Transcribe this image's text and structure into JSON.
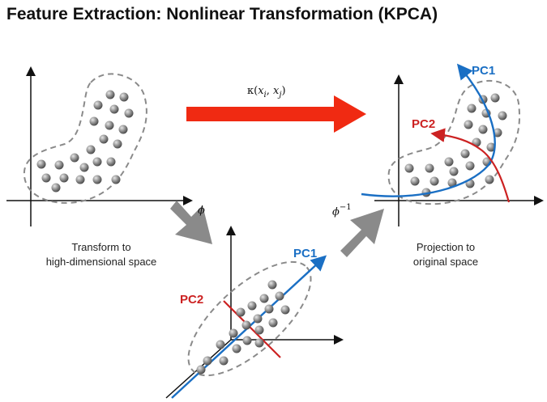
{
  "title": "Feature Extraction: Nonlinear Transformation (KPCA)",
  "kernel_label": "κ(xi, xj)",
  "kernel_parts": {
    "kappa": "κ(",
    "x": "x",
    "i": "i",
    "comma": ", ",
    "j": "j",
    "close": ")"
  },
  "phi_label": "ϕ",
  "phi_inv": {
    "phi": "ϕ",
    "exp": "−1"
  },
  "captions": {
    "transform_line1": "Transform to",
    "transform_line2": "high-dimensional space",
    "projection_line1": "Projection to",
    "projection_line2": "original space"
  },
  "pc_labels": {
    "mid_pc1": "PC1",
    "mid_pc2": "PC2",
    "right_pc1": "PC1",
    "right_pc2": "PC2"
  },
  "colors": {
    "pc1": "#1a6fc4",
    "pc2": "#cc2222",
    "kernel_arrow": "#f02a12",
    "gray_arrow": "#8a8a8a",
    "dot": "#8c8c8c",
    "dashed_region": "#8a8a8a"
  },
  "icons": [
    "red-kernel-arrow",
    "gray-transform-arrow",
    "gray-projection-arrow"
  ]
}
